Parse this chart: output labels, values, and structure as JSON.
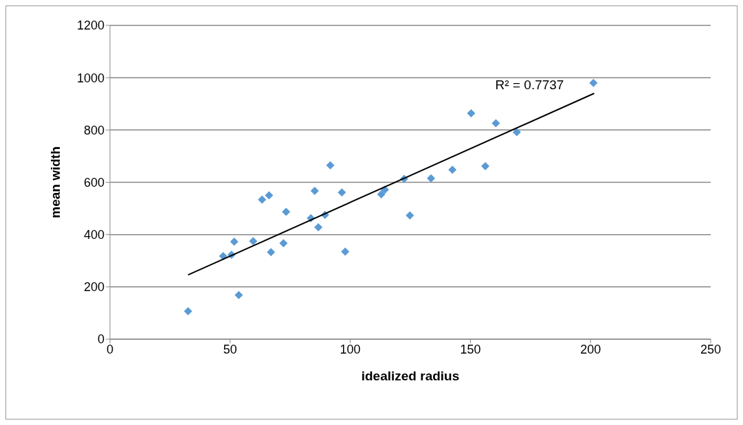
{
  "chart_data": {
    "type": "scatter",
    "xlabel": "idealized radius",
    "ylabel": "mean width",
    "xlim": [
      0,
      250
    ],
    "xticks": [
      0,
      50,
      100,
      150,
      200,
      250
    ],
    "ylim": [
      0,
      1200
    ],
    "yticks": [
      0,
      200,
      400,
      600,
      800,
      1000,
      1200
    ],
    "grid": "y",
    "marker": "diamond",
    "series": [
      {
        "color": "#5b9bd5",
        "x": [
          32.5,
          47.1,
          50.6,
          51.7,
          53.6,
          59.6,
          63.3,
          66.2,
          67.0,
          72.2,
          73.3,
          83.6,
          85.2,
          86.7,
          89.5,
          91.7,
          96.5,
          97.9,
          112.9,
          114.4,
          122.4,
          124.8,
          133.6,
          142.5,
          150.3,
          156.2,
          160.6,
          169.3,
          201.2
        ],
        "values": [
          107,
          318,
          323,
          373,
          169,
          375,
          534,
          550,
          333,
          367,
          487,
          463,
          567,
          428,
          475,
          665,
          561,
          335,
          554,
          572,
          613,
          473,
          615,
          648,
          864,
          662,
          826,
          792,
          980
        ]
      },
      {
        "type": "line",
        "color": "#000000",
        "marker": "none",
        "x": [
          32.5,
          201.5
        ],
        "values": [
          246,
          940
        ]
      }
    ],
    "annotations": [
      "R² = 0.7737"
    ]
  }
}
